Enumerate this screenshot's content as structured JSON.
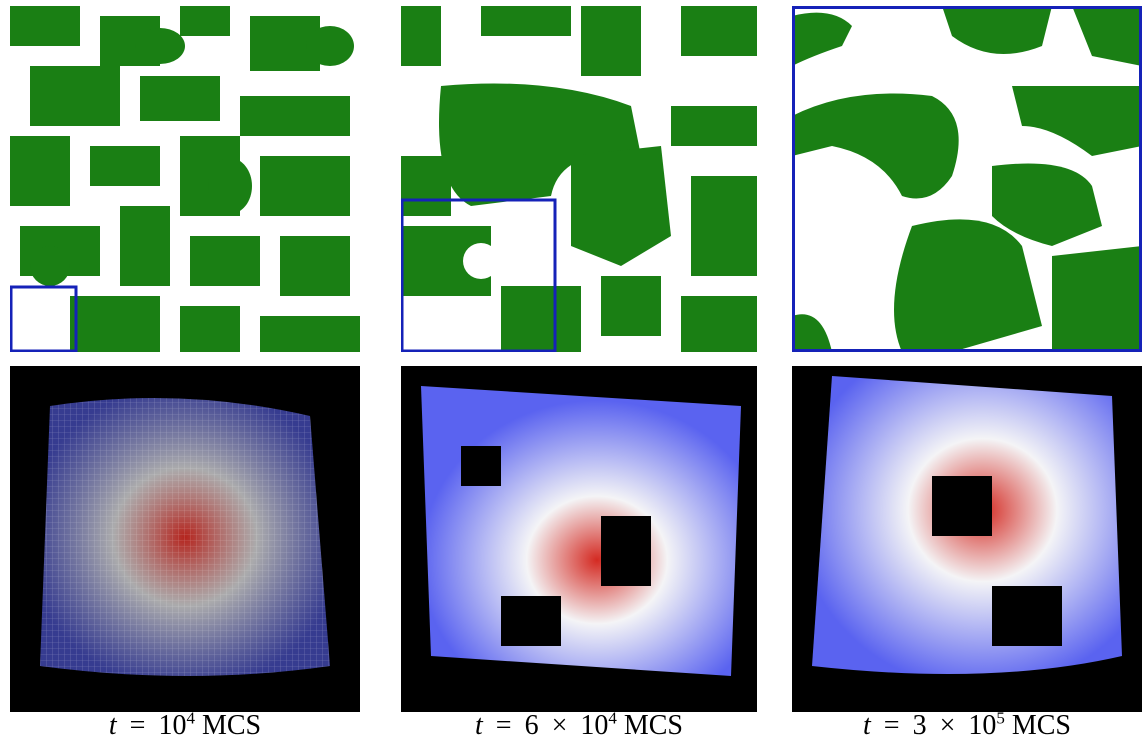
{
  "figure": {
    "colors": {
      "domain": "#1a7f14",
      "background_top": "#ffffff",
      "background_bottom": "#000000",
      "zoom_box": "#1522b8",
      "surface_low": "#5a63f0",
      "surface_mid": "#f4f4f6",
      "surface_high": "#d42a22"
    },
    "columns": [
      {
        "label": "col-1",
        "caption": {
          "var": "t",
          "eq": "=",
          "mant": "",
          "times": "",
          "base": "10",
          "exp": "4",
          "unit": "MCS"
        }
      },
      {
        "label": "col-2",
        "caption": {
          "var": "t",
          "eq": "=",
          "mant": "6",
          "times": "×",
          "base": "10",
          "exp": "4",
          "unit": "MCS"
        }
      },
      {
        "label": "col-3",
        "caption": {
          "var": "t",
          "eq": "=",
          "mant": "3",
          "times": "×",
          "base": "10",
          "exp": "5",
          "unit": "MCS"
        }
      }
    ]
  }
}
